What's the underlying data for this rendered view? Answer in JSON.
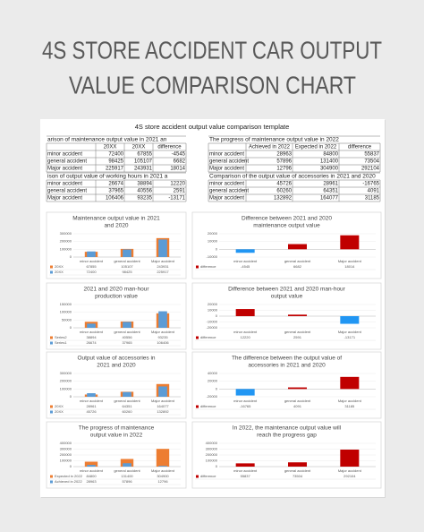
{
  "header": {
    "title": [
      "4S STORE ACCIDENT CAR OUTPUT",
      "VALUE COMPARISON CHART"
    ]
  },
  "sheet": {
    "title": "4S store accident output value comparison template"
  },
  "tables": [
    {
      "title": "arison of maintenance output value in 2021 an",
      "columns": [
        "20XX",
        "20XX",
        "difference"
      ],
      "rows": [
        [
          "minor accident",
          72400,
          67855,
          -4545
        ],
        [
          "general accident",
          98425,
          105107,
          6682
        ],
        [
          "Major accident",
          225917,
          243931,
          18014
        ]
      ]
    },
    {
      "title": "The progress of maintenance output value in 2022",
      "columns": [
        "Achieved in 2022",
        "Expected in 2022",
        "difference"
      ],
      "rows": [
        [
          "minor accident",
          28963,
          84800,
          55837
        ],
        [
          "general accident",
          57896,
          131400,
          73504
        ],
        [
          "Major accident",
          12796,
          304900,
          292104
        ]
      ]
    },
    {
      "title": "ison of output value of working hours in 2021 a",
      "columns": [],
      "rows": [
        [
          "minor accident",
          26674,
          38894,
          12220
        ],
        [
          "general accident",
          37965,
          40556,
          2591
        ],
        [
          "Major accident",
          106406,
          93235,
          -13171
        ]
      ]
    },
    {
      "title": "Comparison of the output value of accessories in 2021 and 2020",
      "columns": [],
      "rows": [
        [
          "minor accident",
          45726,
          28961,
          -16765
        ],
        [
          "general accident",
          60260,
          64351,
          4091
        ],
        [
          "Major accident",
          132892,
          164077,
          31185
        ]
      ]
    }
  ],
  "chart_data": [
    {
      "type": "bar",
      "title": [
        "Maintenance output value in 2021",
        "and 2020"
      ],
      "categories": [
        "minor accident",
        "general accident",
        "Major accident"
      ],
      "series": [
        {
          "name": "20XX",
          "color": "#ed7d31",
          "values": [
            67855,
            105107,
            243931
          ]
        },
        {
          "name": "20XX",
          "color": "#5b9bd5",
          "values": [
            72400,
            98425,
            225917
          ]
        }
      ],
      "ylim": [
        0,
        300000
      ],
      "yticks": [
        0,
        100000,
        200000,
        300000
      ]
    },
    {
      "type": "bar",
      "title": [
        "Difference between 2021 and 2020",
        "maintenance output value"
      ],
      "categories": [
        "minor accident",
        "general accident",
        "Major accident"
      ],
      "series": [
        {
          "name": "difference",
          "color": "#c00000",
          "values": [
            -4545,
            6682,
            18014
          ]
        }
      ],
      "negative_color": "#2196f3",
      "ylim": [
        -10000,
        20000
      ],
      "yticks": [
        -10000,
        0,
        10000,
        20000
      ]
    },
    {
      "type": "bar",
      "title": [
        "2021 and 2020 man-hour",
        "production value"
      ],
      "categories": [
        "minor accident",
        "general accident",
        "Major accident"
      ],
      "series": [
        {
          "name": "Series2",
          "color": "#ed7d31",
          "values": [
            38894,
            40556,
            93235
          ]
        },
        {
          "name": "Series1",
          "color": "#5b9bd5",
          "values": [
            26674,
            37965,
            106406
          ]
        }
      ],
      "ylim": [
        0,
        150000
      ],
      "yticks": [
        0,
        50000,
        100000,
        150000
      ]
    },
    {
      "type": "bar",
      "title": [
        "Difference between 2021 and 2020 man-hour",
        "output value"
      ],
      "categories": [
        "minor accident",
        "general accident",
        "Major accident"
      ],
      "series": [
        {
          "name": "difference",
          "color": "#c00000",
          "values": [
            12220,
            2591,
            -13171
          ]
        }
      ],
      "negative_color": "#2196f3",
      "ylim": [
        -20000,
        20000
      ],
      "yticks": [
        -20000,
        -10000,
        0,
        10000,
        20000
      ]
    },
    {
      "type": "bar",
      "title": [
        "Output value of accessories in",
        "2021 and 2020"
      ],
      "categories": [
        "minor accident",
        "general accident",
        "Major accident"
      ],
      "series": [
        {
          "name": "20XX",
          "color": "#ed7d31",
          "values": [
            28961,
            64351,
            164077
          ]
        },
        {
          "name": "20XX",
          "color": "#5b9bd5",
          "values": [
            45726,
            60260,
            132892
          ]
        }
      ],
      "ylim": [
        0,
        300000
      ],
      "yticks": [
        0,
        100000,
        200000,
        300000
      ]
    },
    {
      "type": "bar",
      "title": [
        "The difference between the output value of",
        "accessories in 2021 and 2020"
      ],
      "categories": [
        "minor accident",
        "general accident",
        "Major accident"
      ],
      "series": [
        {
          "name": "difference",
          "color": "#c00000",
          "values": [
            -16765,
            4091,
            31185
          ]
        }
      ],
      "negative_color": "#2196f3",
      "ylim": [
        -20000,
        40000
      ],
      "yticks": [
        -20000,
        0,
        20000,
        40000
      ]
    },
    {
      "type": "bar",
      "title": [
        "The progress of maintenance",
        "output value in 2022"
      ],
      "categories": [
        "minor accident",
        "general accident",
        "Major accident"
      ],
      "series": [
        {
          "name": "Expected in 2022",
          "color": "#ed7d31",
          "values": [
            84800,
            131400,
            304900
          ]
        },
        {
          "name": "Achieved in 2022",
          "color": "#5b9bd5",
          "values": [
            28963,
            57896,
            12796
          ]
        }
      ],
      "ylim": [
        0,
        400000
      ],
      "yticks": [
        0,
        100000,
        200000,
        300000,
        400000
      ]
    },
    {
      "type": "bar",
      "title": [
        "In 2022, the maintenance output value will",
        "reach the progress gap"
      ],
      "categories": [
        "minor accident",
        "general accident",
        "Major accident"
      ],
      "series": [
        {
          "name": "difference",
          "color": "#c00000",
          "values": [
            55837,
            73504,
            292104
          ]
        }
      ],
      "ylim": [
        0,
        400000
      ],
      "yticks": [
        0,
        100000,
        200000,
        300000,
        400000
      ]
    }
  ]
}
